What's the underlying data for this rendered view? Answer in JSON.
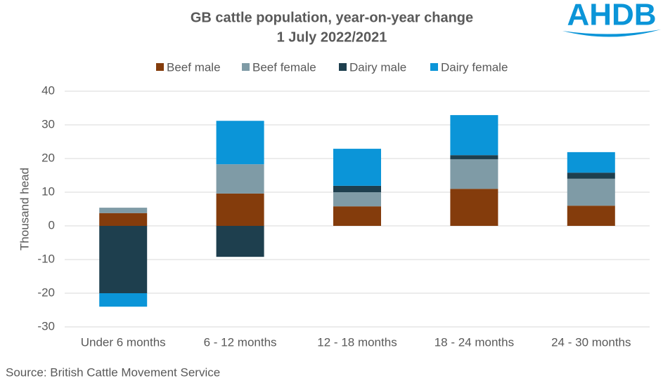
{
  "chart_data": {
    "type": "stacked_bar",
    "title": "GB cattle population, year-on-year change",
    "subtitle": "1 July 2022/2021",
    "y_label": "Thousand head",
    "source": "Source: British Cattle Movement Service",
    "logo": "AHDB",
    "categories": [
      "Under 6 months",
      "6 - 12 months",
      "12 - 18 months",
      "18 - 24 months",
      "24 - 30 months"
    ],
    "series": [
      {
        "name": "Beef male",
        "color": "#843c0c",
        "values": [
          3.8,
          9.6,
          5.8,
          11.0,
          6.0
        ]
      },
      {
        "name": "Beef female",
        "color": "#7f9ba6",
        "values": [
          1.6,
          8.7,
          4.2,
          8.8,
          8.0
        ]
      },
      {
        "name": "Dairy male",
        "color": "#1e3f4e",
        "values": [
          -20.0,
          -9.2,
          1.9,
          1.2,
          1.8
        ]
      },
      {
        "name": "Dairy female",
        "color": "#0b95d8",
        "values": [
          -4.0,
          12.9,
          11.0,
          11.9,
          6.1
        ]
      }
    ],
    "ylim": [
      -30,
      40
    ],
    "yticks": [
      -30,
      -20,
      -10,
      0,
      10,
      20,
      30,
      40
    ],
    "grid": true,
    "legend": "top"
  }
}
